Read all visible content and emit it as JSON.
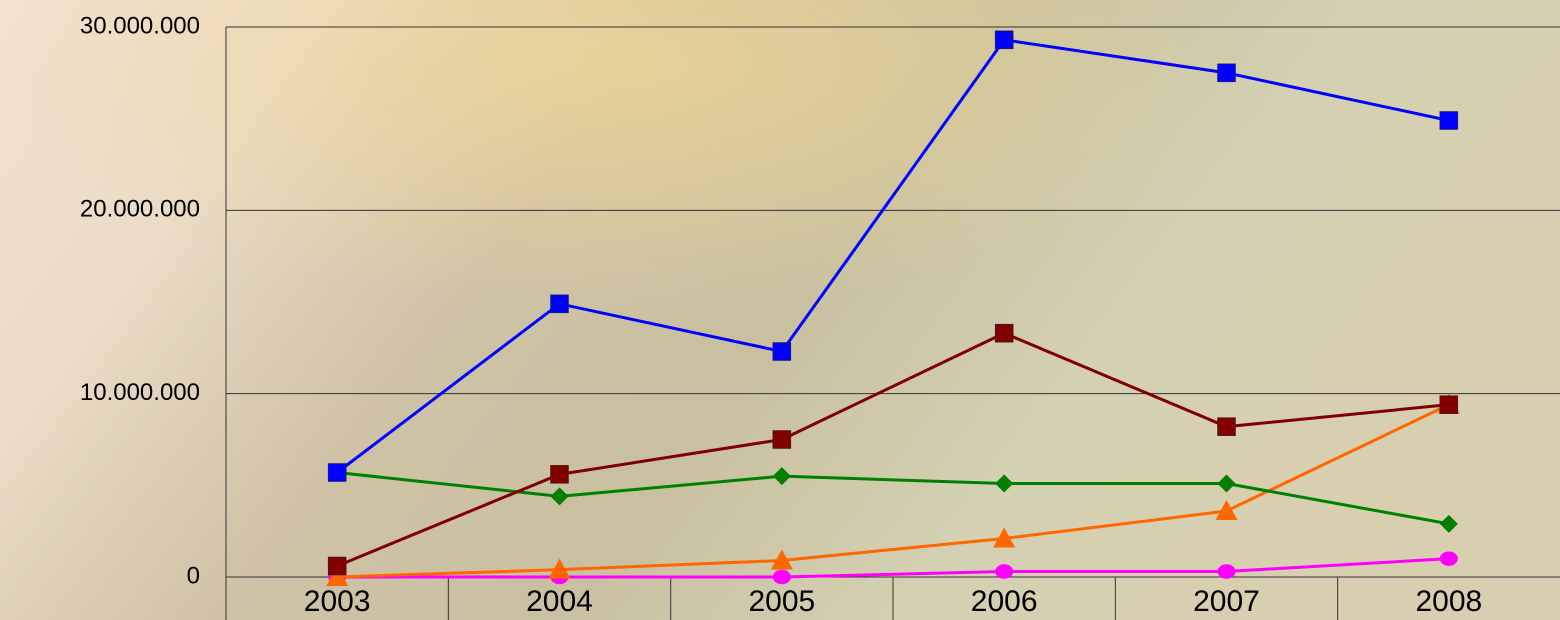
{
  "chart_data": {
    "type": "line",
    "categories": [
      "2003",
      "2004",
      "2005",
      "2006",
      "2007",
      "2008"
    ],
    "series": [
      {
        "color": "#ff00ff",
        "marker": "circle",
        "values": [
          0,
          0,
          0,
          300000,
          300000,
          1000000
        ]
      },
      {
        "color": "#ff6600",
        "marker": "triangle",
        "values": [
          0,
          400000,
          900000,
          2100000,
          3600000,
          9400000
        ]
      },
      {
        "color": "#008000",
        "marker": "diamond",
        "values": [
          5700000,
          4400000,
          5500000,
          5100000,
          5100000,
          2900000
        ]
      },
      {
        "color": "#800000",
        "marker": "square",
        "values": [
          600000,
          5600000,
          7500000,
          13300000,
          8200000,
          9400000
        ]
      },
      {
        "color": "#0000ff",
        "marker": "square",
        "values": [
          5700000,
          14900000,
          12300000,
          29300000,
          27500000,
          24900000
        ]
      }
    ],
    "ylim": [
      0,
      30000000
    ],
    "yticks": [
      0,
      {
        "value": 10000000,
        "label": "10.000.000"
      },
      {
        "value": 20000000,
        "label": "20.000.000"
      },
      {
        "value": 30000000,
        "label": "30.000.000"
      }
    ],
    "grid": true
  }
}
